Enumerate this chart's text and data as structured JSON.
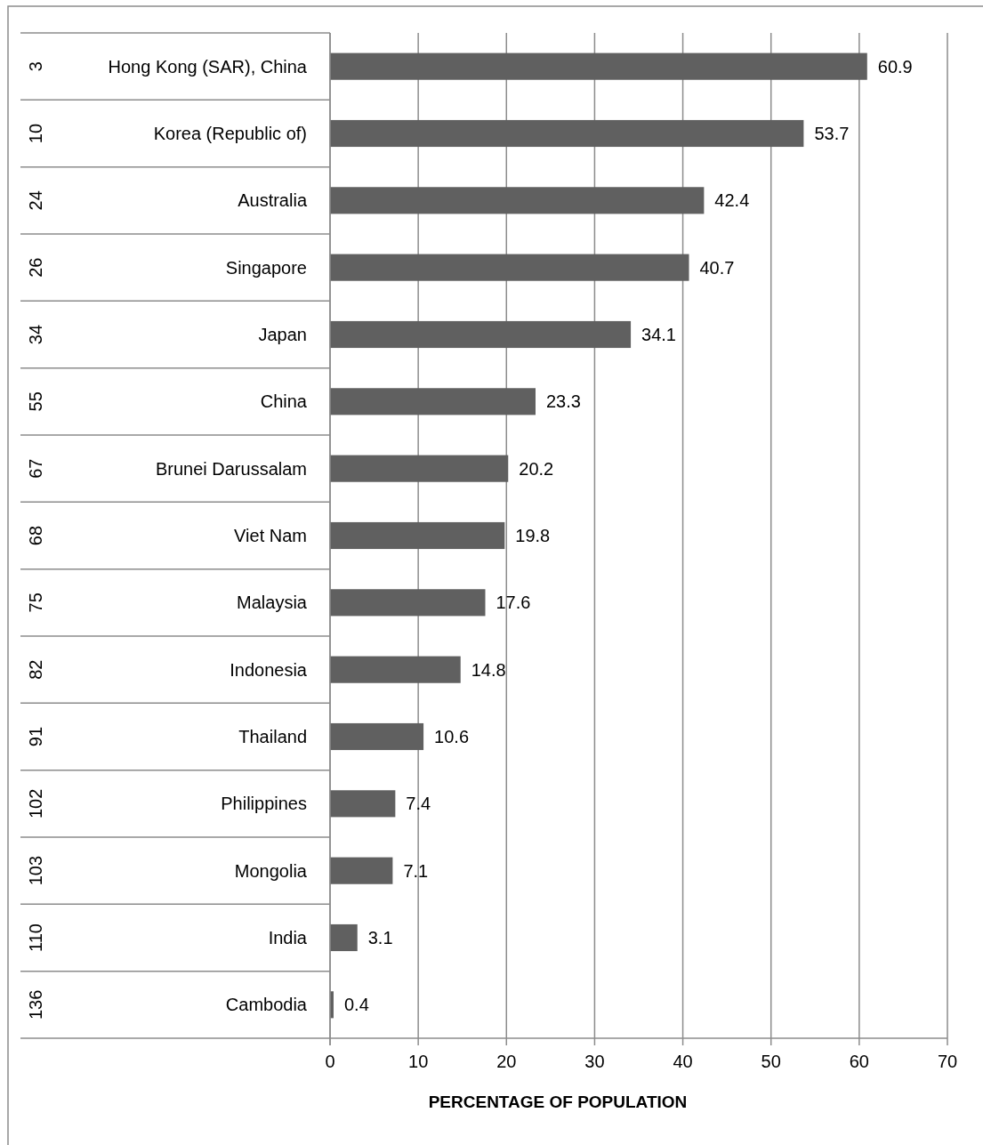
{
  "chart_data": {
    "type": "bar",
    "orientation": "horizontal",
    "categories": [
      "Hong Kong (SAR), China",
      "Korea (Republic of)",
      "Australia",
      "Singapore",
      "Japan",
      "China",
      "Brunei Darussalam",
      "Viet Nam",
      "Malaysia",
      "Indonesia",
      "Thailand",
      "Philippines",
      "Mongolia",
      "India",
      "Cambodia"
    ],
    "y2_categories": [
      "3",
      "10",
      "24",
      "26",
      "34",
      "55",
      "67",
      "68",
      "75",
      "82",
      "91",
      "102",
      "103",
      "110",
      "136"
    ],
    "values": [
      60.9,
      53.7,
      42.4,
      40.7,
      34.1,
      23.3,
      20.2,
      19.8,
      17.6,
      14.8,
      10.6,
      7.4,
      7.1,
      3.1,
      0.4
    ],
    "color": "#606060",
    "xlim": [
      0,
      70
    ],
    "xticks": [
      0,
      10,
      20,
      30,
      40,
      50,
      60,
      70
    ],
    "xlabel": "PERCENTAGE OF POPULATION",
    "grid": "x",
    "data_labels": true
  }
}
